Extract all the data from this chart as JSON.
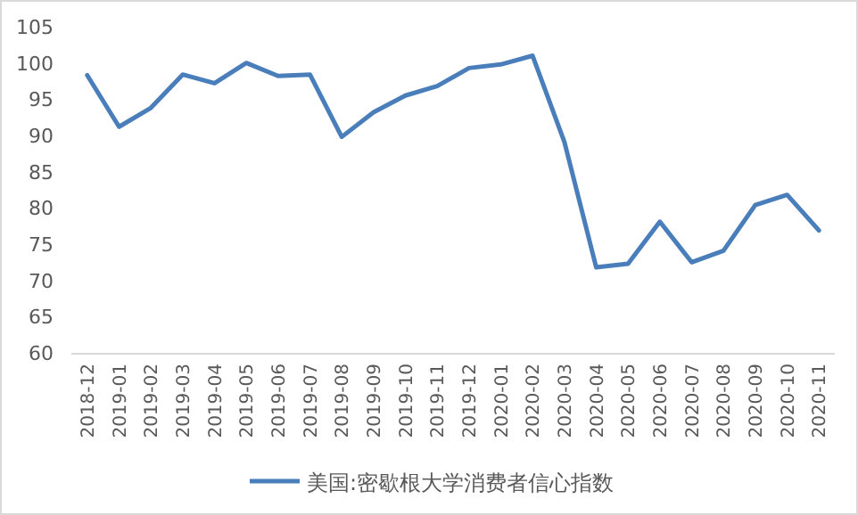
{
  "chart_data": {
    "type": "line",
    "categories": [
      "2018-12",
      "2019-01",
      "2019-02",
      "2019-03",
      "2019-04",
      "2019-05",
      "2019-06",
      "2019-07",
      "2019-08",
      "2019-09",
      "2019-10",
      "2019-11",
      "2019-12",
      "2020-01",
      "2020-02",
      "2020-03",
      "2020-04",
      "2020-05",
      "2020-06",
      "2020-07",
      "2020-08",
      "2020-09",
      "2020-10",
      "2020-11"
    ],
    "series": [
      {
        "name": "美国:密歇根大学消费者信心指数",
        "color": "#4a7ebb",
        "values": [
          98.3,
          91.2,
          93.8,
          98.4,
          97.2,
          100.0,
          98.2,
          98.4,
          89.8,
          93.2,
          95.5,
          96.8,
          99.3,
          99.8,
          101.0,
          89.1,
          71.8,
          72.3,
          78.1,
          72.5,
          74.1,
          80.4,
          81.8,
          76.9
        ]
      }
    ],
    "ylim": [
      60,
      105
    ],
    "yticks": [
      60,
      65,
      70,
      75,
      80,
      85,
      90,
      95,
      100,
      105
    ],
    "grid": false,
    "legend": "bottom",
    "line_style": "solid",
    "marker": "none"
  }
}
